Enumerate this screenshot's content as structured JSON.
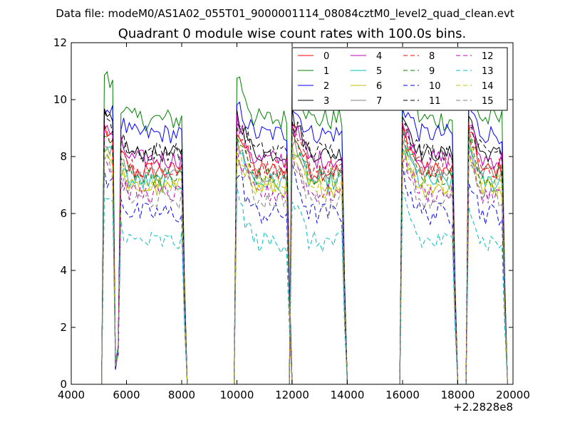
{
  "header": {
    "data_file": "Data file: modeM0/AS1A02_055T01_9000001114_08084cztM0_level2_quad_clean.evt"
  },
  "chart_data": {
    "type": "line",
    "title": "Quadrant 0 module wise count rates with 100.0s bins.",
    "xlabel": "",
    "ylabel": "",
    "xlim": [
      4000,
      20000
    ],
    "ylim": [
      0,
      12
    ],
    "x_offset_label": "+2.2828e8",
    "xticks": [
      4000,
      6000,
      8000,
      10000,
      12000,
      14000,
      16000,
      18000,
      20000
    ],
    "yticks": [
      0,
      2,
      4,
      6,
      8,
      10,
      12
    ],
    "legend_position": "top-right",
    "legend_columns": 4,
    "bin_width_s": 100,
    "segments": [
      {
        "start": 5200,
        "end": 8100,
        "drops": [
          {
            "x": 5600,
            "y": 0.5
          },
          {
            "x": 5700,
            "y": 1.0
          }
        ]
      },
      {
        "start": 10000,
        "end": 11900,
        "drops": []
      },
      {
        "start": 12000,
        "end": 13900,
        "drops": []
      },
      {
        "start": 16000,
        "end": 17900,
        "drops": []
      },
      {
        "start": 18400,
        "end": 19700,
        "drops": []
      }
    ],
    "series": [
      {
        "name": "0",
        "color": "#ff0000",
        "dash": "solid",
        "level": 7.5,
        "peak": 9.0,
        "noise": 0.35
      },
      {
        "name": "1",
        "color": "#008000",
        "dash": "solid",
        "level": 9.3,
        "peak": 10.9,
        "noise": 0.4
      },
      {
        "name": "2",
        "color": "#0000ff",
        "dash": "solid",
        "level": 8.8,
        "peak": 9.8,
        "noise": 0.35
      },
      {
        "name": "3",
        "color": "#000000",
        "dash": "solid",
        "level": 8.1,
        "peak": 9.5,
        "noise": 0.3
      },
      {
        "name": "4",
        "color": "#bf00bf",
        "dash": "solid",
        "level": 7.9,
        "peak": 9.2,
        "noise": 0.35
      },
      {
        "name": "5",
        "color": "#00bfbf",
        "dash": "solid",
        "level": 7.1,
        "peak": 8.4,
        "noise": 0.35
      },
      {
        "name": "6",
        "color": "#bfbf00",
        "dash": "solid",
        "level": 6.9,
        "peak": 8.2,
        "noise": 0.35
      },
      {
        "name": "7",
        "color": "#808080",
        "dash": "solid",
        "level": 7.4,
        "peak": 8.6,
        "noise": 0.3
      },
      {
        "name": "8",
        "color": "#ff0000",
        "dash": "dashed",
        "level": 7.6,
        "peak": 8.9,
        "noise": 0.35
      },
      {
        "name": "9",
        "color": "#008000",
        "dash": "dashed",
        "level": 7.3,
        "peak": 8.7,
        "noise": 0.35
      },
      {
        "name": "10",
        "color": "#0000ff",
        "dash": "dashed",
        "level": 6.0,
        "peak": 7.4,
        "noise": 0.4
      },
      {
        "name": "11",
        "color": "#000000",
        "dash": "dashed",
        "level": 8.2,
        "peak": 9.3,
        "noise": 0.35
      },
      {
        "name": "12",
        "color": "#bf00bf",
        "dash": "dashed",
        "level": 6.7,
        "peak": 8.0,
        "noise": 0.35
      },
      {
        "name": "13",
        "color": "#00bfbf",
        "dash": "dashed",
        "level": 5.0,
        "peak": 6.6,
        "noise": 0.4
      },
      {
        "name": "14",
        "color": "#bfbf00",
        "dash": "dashed",
        "level": 7.0,
        "peak": 8.3,
        "noise": 0.35
      },
      {
        "name": "15",
        "color": "#808080",
        "dash": "dashed",
        "level": 6.5,
        "peak": 7.9,
        "noise": 0.35
      }
    ]
  }
}
